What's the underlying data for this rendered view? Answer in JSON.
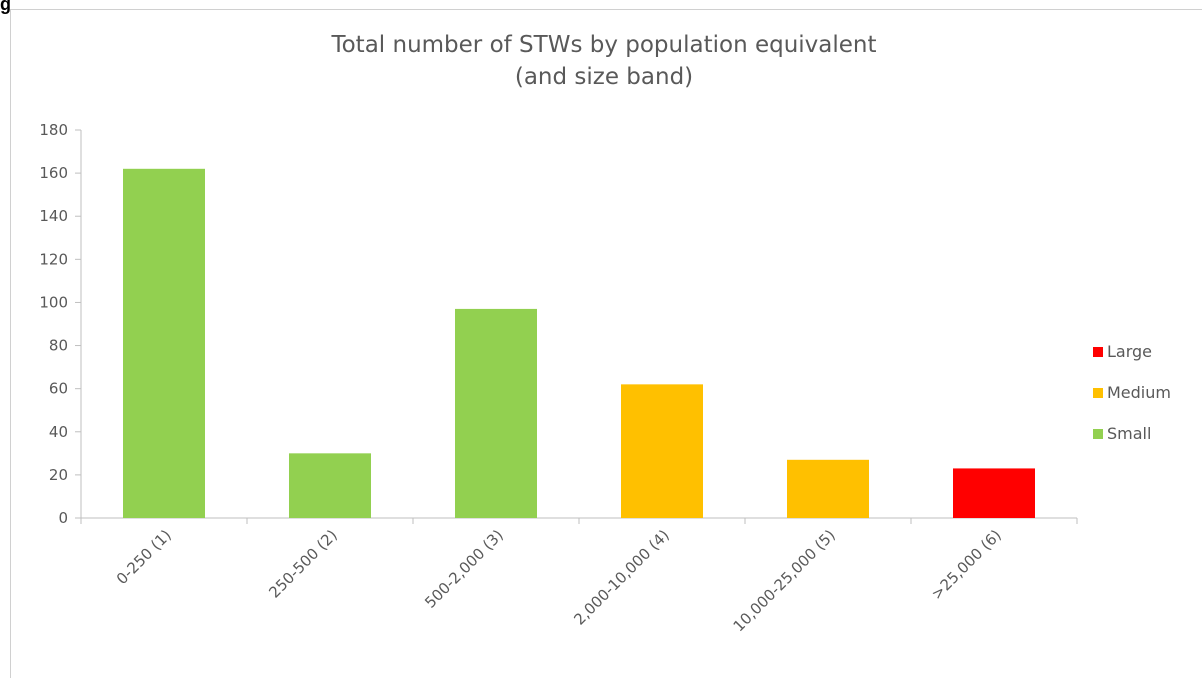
{
  "corner_label": "g",
  "chart_data": {
    "type": "bar",
    "title_lines": [
      "Total number of STWs by population equivalent",
      "(and size band)"
    ],
    "xlabel": "",
    "ylabel": "",
    "categories": [
      "0-250  (1)",
      "250-500  (2)",
      "500-2,000  (3)",
      "2,000-10,000  (4)",
      "10,000-25,000  (5)",
      ">25,000  (6)"
    ],
    "values": [
      162,
      30,
      97,
      62,
      27,
      23
    ],
    "bands": [
      "Small",
      "Small",
      "Small",
      "Medium",
      "Medium",
      "Large"
    ],
    "ylim": [
      0,
      180
    ],
    "yticks": [
      0,
      20,
      40,
      60,
      80,
      100,
      120,
      140,
      160,
      180
    ],
    "grid": false,
    "legend_position": "right",
    "legend": [
      {
        "name": "Large",
        "color": "#ff0000"
      },
      {
        "name": "Medium",
        "color": "#ffc000"
      },
      {
        "name": "Small",
        "color": "#92d050"
      }
    ]
  }
}
